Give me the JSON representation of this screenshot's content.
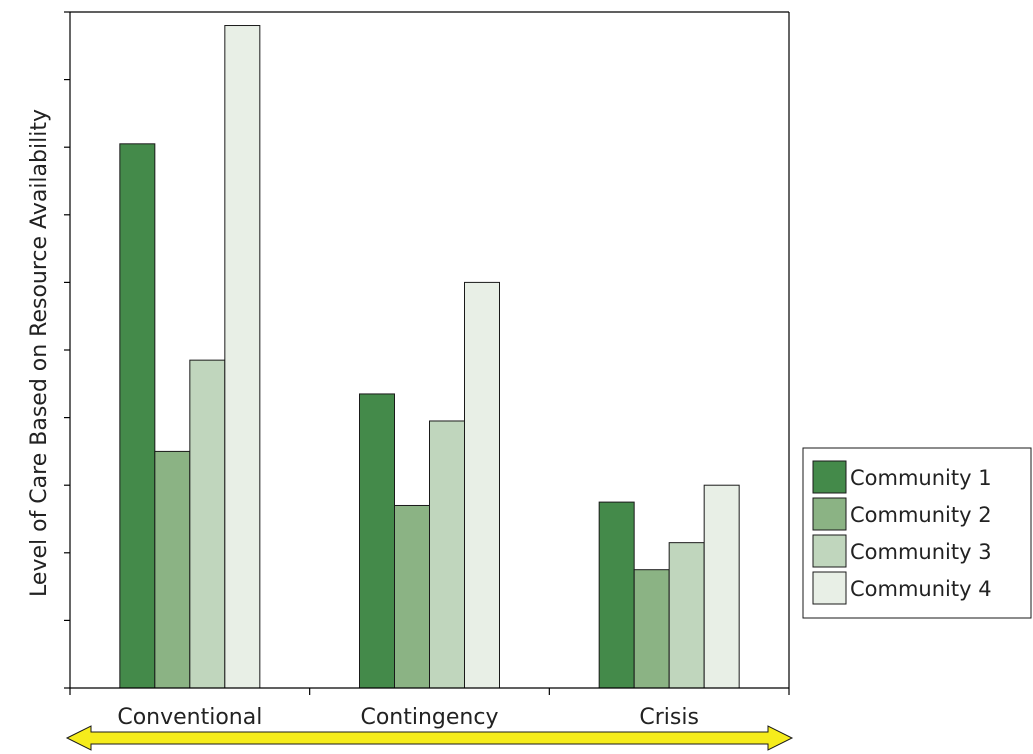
{
  "chart_data": {
    "type": "bar",
    "title": "",
    "xlabel": "",
    "ylabel": "Level of Care Based on Resource Availability",
    "categories": [
      "Conventional",
      "Contingency",
      "Crisis"
    ],
    "ylim": [
      0,
      100
    ],
    "y_ticks_labeled": false,
    "grid": false,
    "legend": "right",
    "series": [
      {
        "name": "Community 1",
        "color": "#448a4a",
        "values": [
          80.5,
          43.5,
          27.5
        ]
      },
      {
        "name": "Community 2",
        "color": "#8bb384",
        "values": [
          35,
          27,
          17.5
        ]
      },
      {
        "name": "Community 3",
        "color": "#c0d6bd",
        "values": [
          48.5,
          39.5,
          21.5
        ]
      },
      {
        "name": "Community 4",
        "color": "#e8efe6",
        "values": [
          98,
          60,
          30
        ]
      }
    ],
    "annotation": {
      "type": "double-headed-arrow",
      "color": "#f5ec1c",
      "spans": "x-axis"
    }
  }
}
